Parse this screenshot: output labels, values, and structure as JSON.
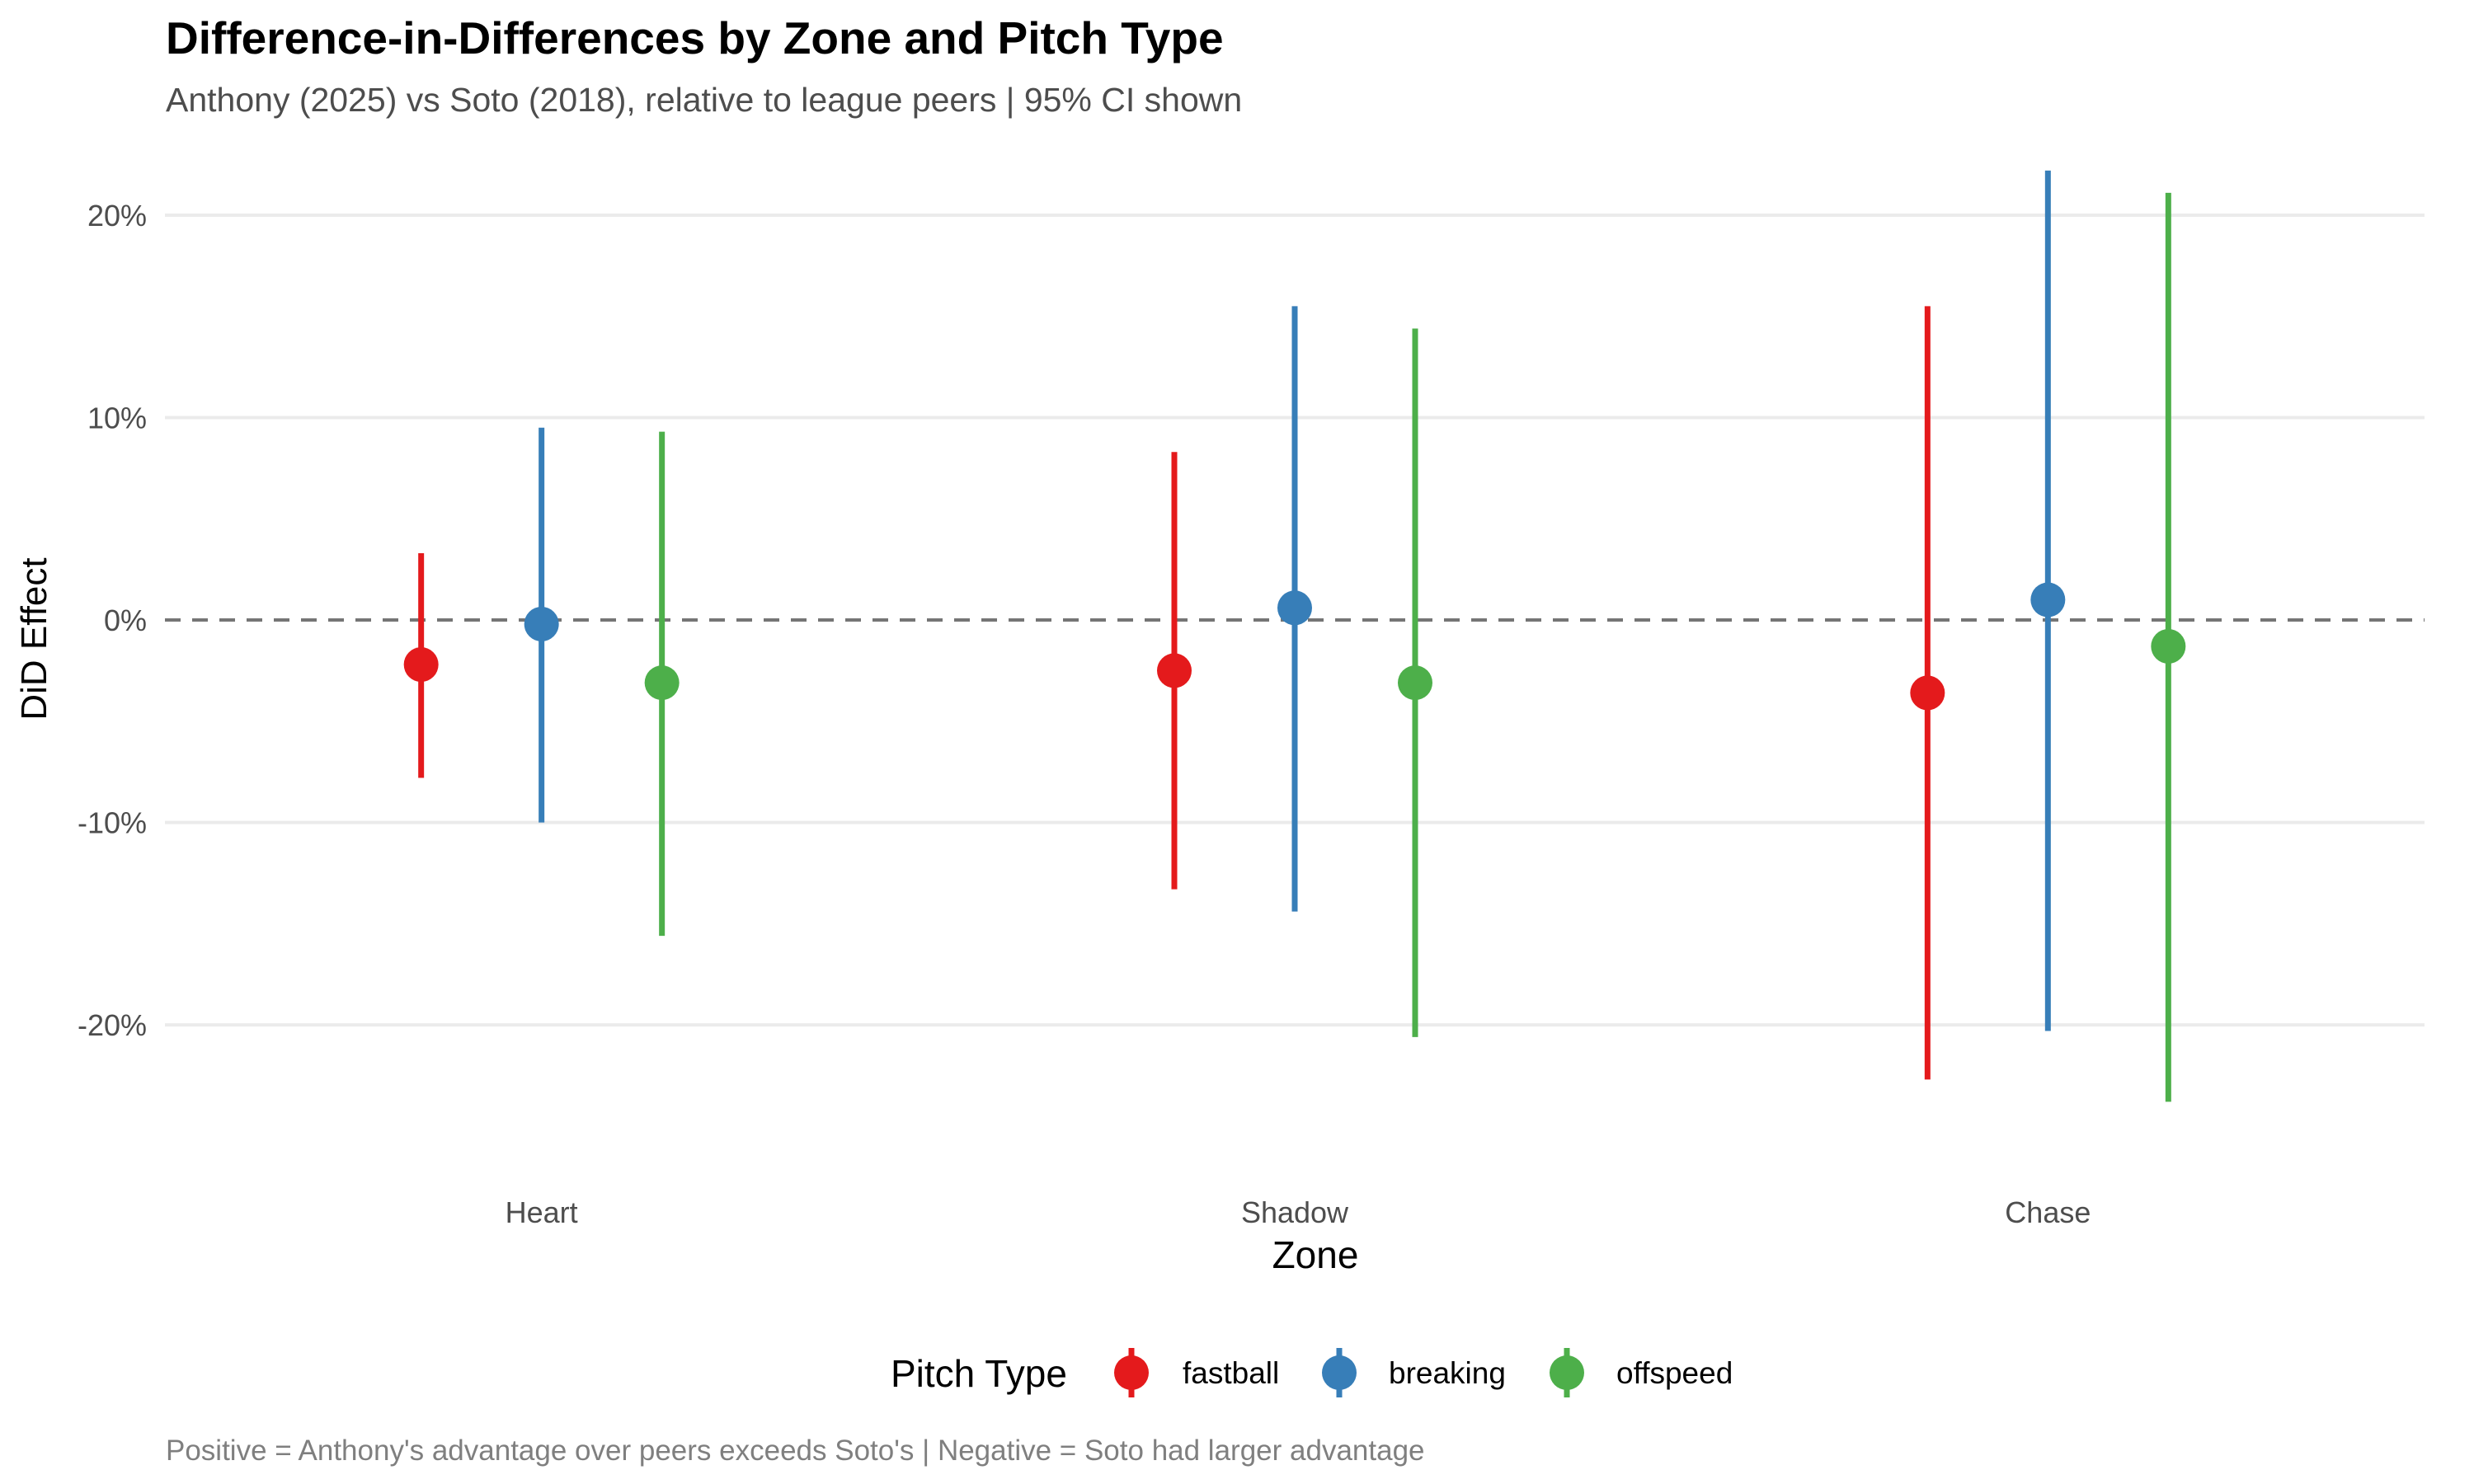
{
  "chart_data": {
    "type": "scatter",
    "variant": "point-with-95%-CI-errorbars",
    "title": "Difference-in-Differences by Zone and Pitch Type",
    "subtitle": "Anthony (2025) vs Soto (2018), relative to league peers | 95% CI shown",
    "caption": "Positive = Anthony's advantage over peers exceeds Soto's | Negative = Soto had larger advantage",
    "xlabel": "Zone",
    "ylabel": "DiD Effect",
    "categories": [
      "Heart",
      "Shadow",
      "Chase"
    ],
    "ylim": [
      -0.27,
      0.235
    ],
    "y_ticks": [
      -0.2,
      -0.1,
      0,
      0.1,
      0.2
    ],
    "y_tick_labels": [
      "-20%",
      "-10%",
      "0%",
      "10%",
      "20%"
    ],
    "reference_line": {
      "y": 0,
      "style": "dashed",
      "color": "#757575"
    },
    "grid": "horizontal-major",
    "legend": {
      "title": "Pitch Type",
      "position": "bottom"
    },
    "series": [
      {
        "name": "fastball",
        "color": "#E41A1C",
        "values": [
          -0.022,
          -0.025,
          -0.036
        ],
        "lower": [
          -0.078,
          -0.133,
          -0.227
        ],
        "upper": [
          0.033,
          0.083,
          0.155
        ]
      },
      {
        "name": "breaking",
        "color": "#377EB8",
        "values": [
          -0.002,
          0.006,
          0.01
        ],
        "lower": [
          -0.1,
          -0.144,
          -0.203
        ],
        "upper": [
          0.095,
          0.155,
          0.222
        ]
      },
      {
        "name": "offspeed",
        "color": "#4DAF4A",
        "values": [
          -0.031,
          -0.031,
          -0.013
        ],
        "lower": [
          -0.156,
          -0.206,
          -0.238
        ],
        "upper": [
          0.093,
          0.144,
          0.211
        ]
      }
    ]
  }
}
